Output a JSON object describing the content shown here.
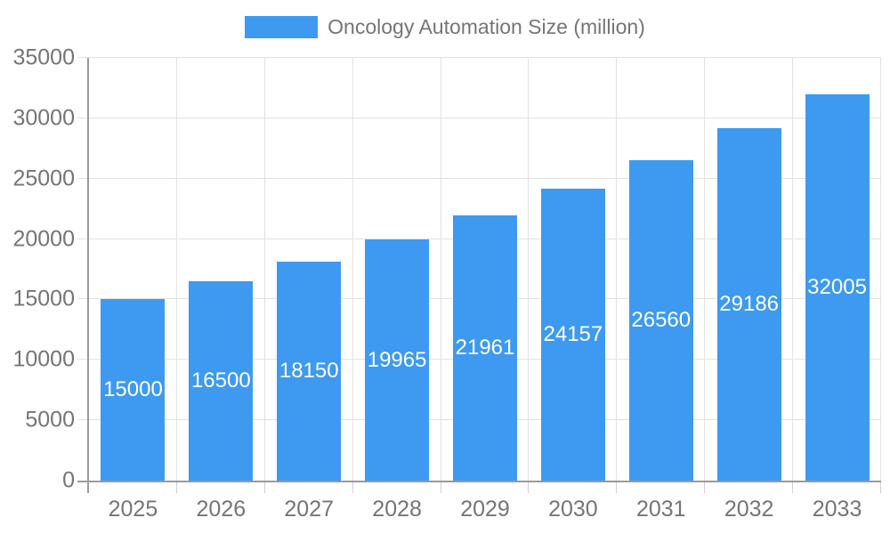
{
  "chart_data": {
    "type": "bar",
    "title": "Oncology Automation Size (million)",
    "categories": [
      "2025",
      "2026",
      "2027",
      "2028",
      "2029",
      "2030",
      "2031",
      "2032",
      "2033"
    ],
    "values": [
      15000,
      16500,
      18150,
      19965,
      21961,
      24157,
      26560,
      29186,
      32005
    ],
    "value_labels": [
      "15000",
      "16500",
      "18150",
      "19965",
      "21961",
      "24157",
      "26560",
      "29186",
      "32005"
    ],
    "xlabel": "",
    "ylabel": "",
    "ylim": [
      0,
      35000
    ],
    "y_ticks": [
      0,
      5000,
      10000,
      15000,
      20000,
      25000,
      30000,
      35000
    ],
    "y_tick_labels": [
      "0",
      "5000",
      "10000",
      "15000",
      "20000",
      "25000",
      "30000",
      "35000"
    ],
    "grid": true,
    "legend_position": "top-center",
    "colors": {
      "bar": "#3d9af0",
      "value_label": "#ffffff",
      "axis_text": "#757575",
      "legend_text": "#757575",
      "axis_line": "#9a9a9a",
      "gridline": "#e2e2e2",
      "x_tick": "#cfcfcf",
      "background": "#ffffff"
    }
  }
}
